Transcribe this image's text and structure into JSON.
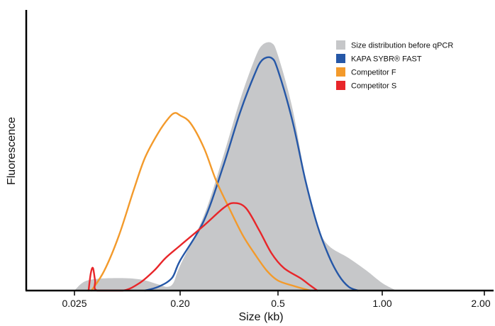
{
  "chart_data": {
    "type": "area",
    "xlabel": "Size (kb)",
    "ylabel": "Fluorescence",
    "x_tick_labels": [
      "0.025",
      "0.20",
      "0.5",
      "1.00",
      "2.00"
    ],
    "x_tick_values": [
      0.025,
      0.2,
      0.5,
      1.0,
      2.0
    ],
    "grid": false,
    "legend_position": "top-right",
    "series": [
      {
        "name": "Size distribution before qPCR",
        "color": "#c6c7c9",
        "style": "filled-area",
        "x": [
          0.025,
          0.032,
          0.055,
          0.09,
          0.13,
          0.155,
          0.175,
          0.2,
          0.25,
          0.3,
          0.35,
          0.4,
          0.43,
          0.47,
          0.5,
          0.55,
          0.6,
          0.65,
          0.7,
          0.8,
          0.9,
          1.0,
          1.1
        ],
        "y": [
          0,
          4,
          5,
          4.5,
          2.5,
          1.5,
          3,
          10,
          30,
          54,
          76,
          92,
          98,
          99,
          94,
          73,
          45,
          26,
          18,
          13,
          8,
          3,
          0
        ]
      },
      {
        "name": "KAPA SYBR® FAST",
        "color": "#2557a7",
        "style": "line",
        "x": [
          0.1,
          0.13,
          0.17,
          0.2,
          0.25,
          0.3,
          0.35,
          0.4,
          0.43,
          0.47,
          0.5,
          0.55,
          0.6,
          0.65,
          0.7,
          0.75,
          0.8,
          0.85
        ],
        "y": [
          0,
          1.5,
          5,
          12,
          28,
          50,
          71,
          86,
          92,
          93,
          88,
          68,
          44,
          26,
          14,
          6,
          1.5,
          0
        ]
      },
      {
        "name": "Competitor F",
        "color": "#f39a2b",
        "style": "line",
        "x": [
          0.035,
          0.045,
          0.06,
          0.08,
          0.1,
          0.13,
          0.16,
          0.18,
          0.2,
          0.22,
          0.25,
          0.28,
          0.32,
          0.36,
          0.4,
          0.45,
          0.5,
          0.55,
          0.6,
          0.62
        ],
        "y": [
          0,
          8,
          22,
          40,
          53,
          63,
          69,
          71,
          70,
          67,
          57,
          44,
          32,
          22,
          15,
          8,
          4,
          2,
          0.5,
          0
        ]
      },
      {
        "name": "Competitor S",
        "color": "#e8262a",
        "style": "line",
        "x": [
          0.033,
          0.0345,
          0.036,
          0.0375,
          0.039,
          0.065,
          0.09,
          0.12,
          0.15,
          0.2,
          0.25,
          0.3,
          0.33,
          0.37,
          0.42,
          0.47,
          0.52,
          0.58,
          0.62,
          0.65
        ],
        "y": [
          0,
          7,
          9,
          4,
          0,
          0,
          3,
          8,
          13,
          18,
          26,
          33,
          35,
          33,
          24,
          15,
          9,
          5,
          2,
          0
        ]
      }
    ]
  }
}
